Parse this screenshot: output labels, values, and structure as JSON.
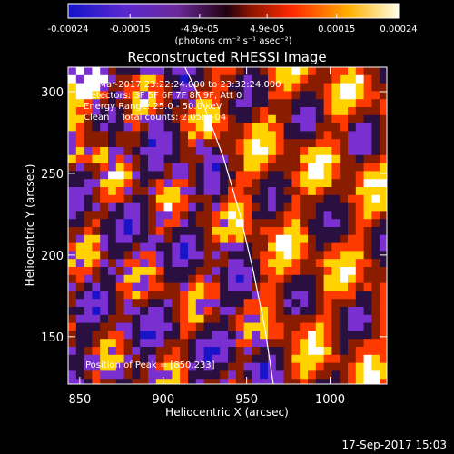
{
  "chart_data": {
    "type": "heatmap",
    "title": "Reconstructed RHESSI Image",
    "xlabel": "Heliocentric X (arcsec)",
    "ylabel": "Heliocentric Y (arcsec)",
    "xlim": [
      843,
      1034
    ],
    "ylim": [
      121,
      315
    ],
    "x_ticks": [
      850,
      900,
      950,
      1000
    ],
    "y_ticks": [
      150,
      200,
      250,
      300
    ],
    "colorbar": {
      "min": -0.00024,
      "max": 0.00024,
      "tick_values": [
        -0.00024,
        -0.00015,
        -4.9e-05,
        4.9e-05,
        0.00015,
        0.00024
      ],
      "tick_labels": [
        "-0.00024",
        "-0.00015",
        "-4.9e-05",
        "4.9e-05",
        "0.00015",
        "0.00024"
      ],
      "units": "(photons cm⁻² s⁻¹ asec⁻²)",
      "colors": [
        "#1a14c8",
        "#7a2fd0",
        "#2a1040",
        "#8a1c00",
        "#ff3a00",
        "#ffd200",
        "#ffffff"
      ]
    },
    "limb_curve": [
      [
        913,
        315
      ],
      [
        925,
        290
      ],
      [
        936,
        260
      ],
      [
        946,
        225
      ],
      [
        954,
        190
      ],
      [
        961,
        155
      ],
      [
        966,
        121
      ]
    ],
    "peak": [
      850,
      233
    ],
    "annotations": {
      "time": "28-Mar-2017 23:22:24.000 to 23:32:24.000",
      "detectors": "Detectors: 3F 5F 6F 7F 8F 9F, Att 0",
      "energy": "Energy Range: 25.0 - 50.0 keV",
      "clean": "Clean    Total counts: 2.05E+04",
      "peak_label": "Position of Peak = [850,233]"
    },
    "footer_timestamp": "17-Sep-2017 15:03"
  }
}
